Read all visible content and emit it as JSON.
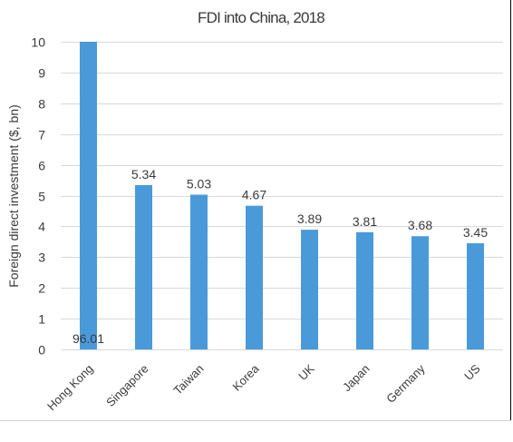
{
  "chart_data": {
    "type": "bar",
    "title": "FDI into China, 2018",
    "xlabel": "",
    "ylabel": "Foreign direct investment ($, bn)",
    "categories": [
      "Hong Kong",
      "Singapore",
      "Taiwan",
      "Korea",
      "UK",
      "Japan",
      "Germany",
      "US"
    ],
    "values": [
      96.01,
      5.34,
      5.03,
      4.67,
      3.89,
      3.81,
      3.68,
      3.45
    ],
    "data_labels": [
      "96.01",
      "5.34",
      "5.03",
      "4.67",
      "3.89",
      "3.81",
      "3.68",
      "3.45"
    ],
    "ylim": [
      0,
      10
    ],
    "yticks": [
      0,
      1,
      2,
      3,
      4,
      5,
      6,
      7,
      8,
      9,
      10
    ],
    "grid": true,
    "legend": "none",
    "bar_color": "#4a9ada",
    "grid_color": "#d9d9d9",
    "text_color": "#3a3a3a"
  }
}
